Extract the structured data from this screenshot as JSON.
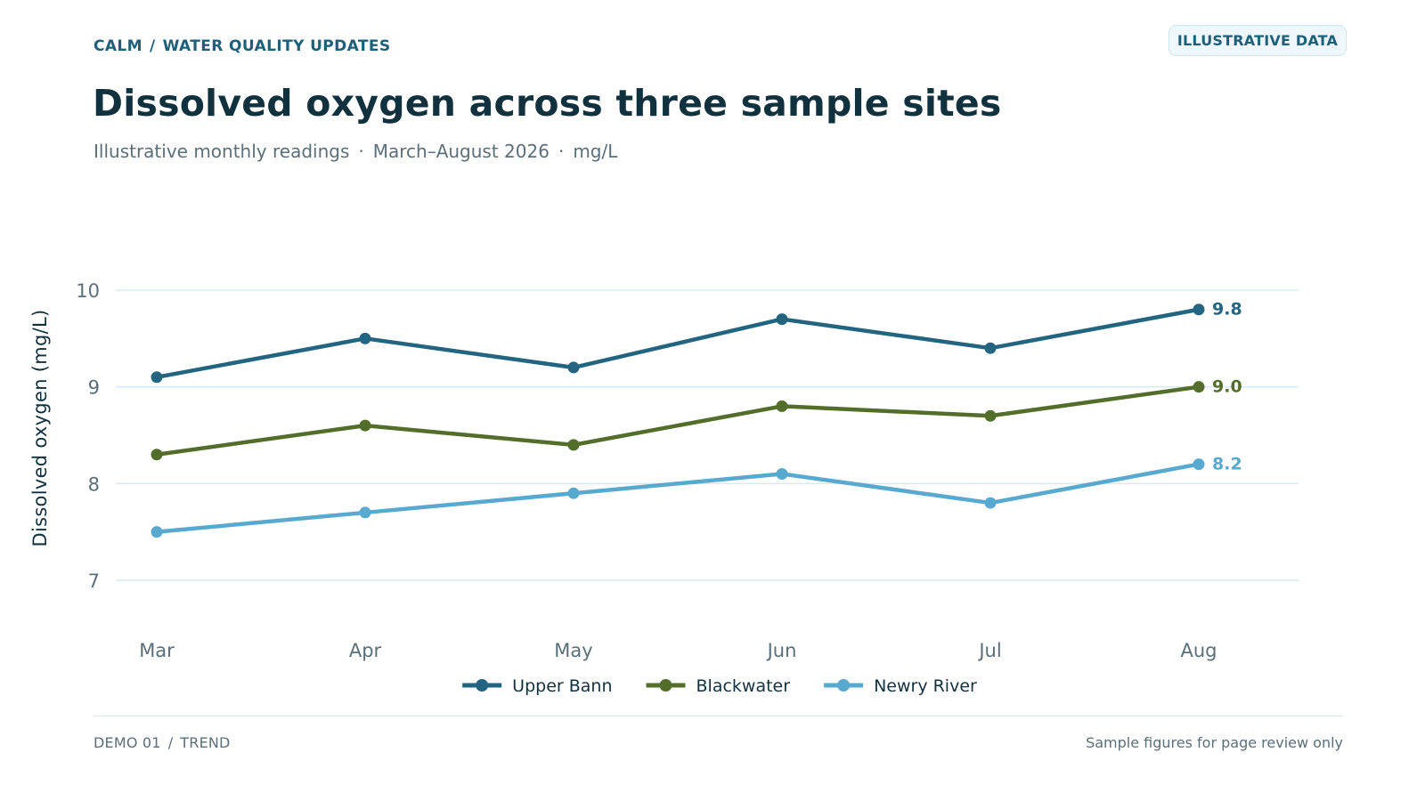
{
  "header": {
    "brand": "CALM",
    "separator": "/",
    "section": "WATER QUALITY UPDATES",
    "badge": "ILLUSTRATIVE DATA",
    "title": "Dissolved oxygen across three sample sites",
    "subtitle_parts": [
      "Illustrative monthly readings",
      "March–August 2026",
      "mg/L"
    ],
    "subtitle_separator": "·"
  },
  "chart_data": {
    "type": "line",
    "title": "Dissolved oxygen across three sample sites",
    "subtitle": "Illustrative monthly readings · March–August 2026 · mg/L",
    "xlabel": "",
    "ylabel": "Dissolved oxygen (mg/L)",
    "x": [
      "Mar",
      "Apr",
      "May",
      "Jun",
      "Jul",
      "Aug"
    ],
    "ylim": [
      6.4,
      10.4
    ],
    "yticks": [
      "7",
      "8",
      "9",
      "10"
    ],
    "grid": true,
    "legend_position": "bottom-center",
    "series": [
      {
        "name": "Upper Bann",
        "color": "#236480",
        "values": [
          9.1,
          9.5,
          9.2,
          9.7,
          9.4,
          9.8
        ],
        "end_label": "9.8"
      },
      {
        "name": "Blackwater",
        "color": "#526e2a",
        "values": [
          8.3,
          8.6,
          8.4,
          8.8,
          8.7,
          9.0
        ],
        "end_label": "9.0"
      },
      {
        "name": "Newry River",
        "color": "#58a9d0",
        "values": [
          7.5,
          7.7,
          7.9,
          8.1,
          7.8,
          8.2
        ],
        "end_label": "8.2"
      }
    ]
  },
  "footer": {
    "left_parts": [
      "DEMO 01",
      "TREND"
    ],
    "separator": "/",
    "right": "Sample figures for page review only"
  }
}
